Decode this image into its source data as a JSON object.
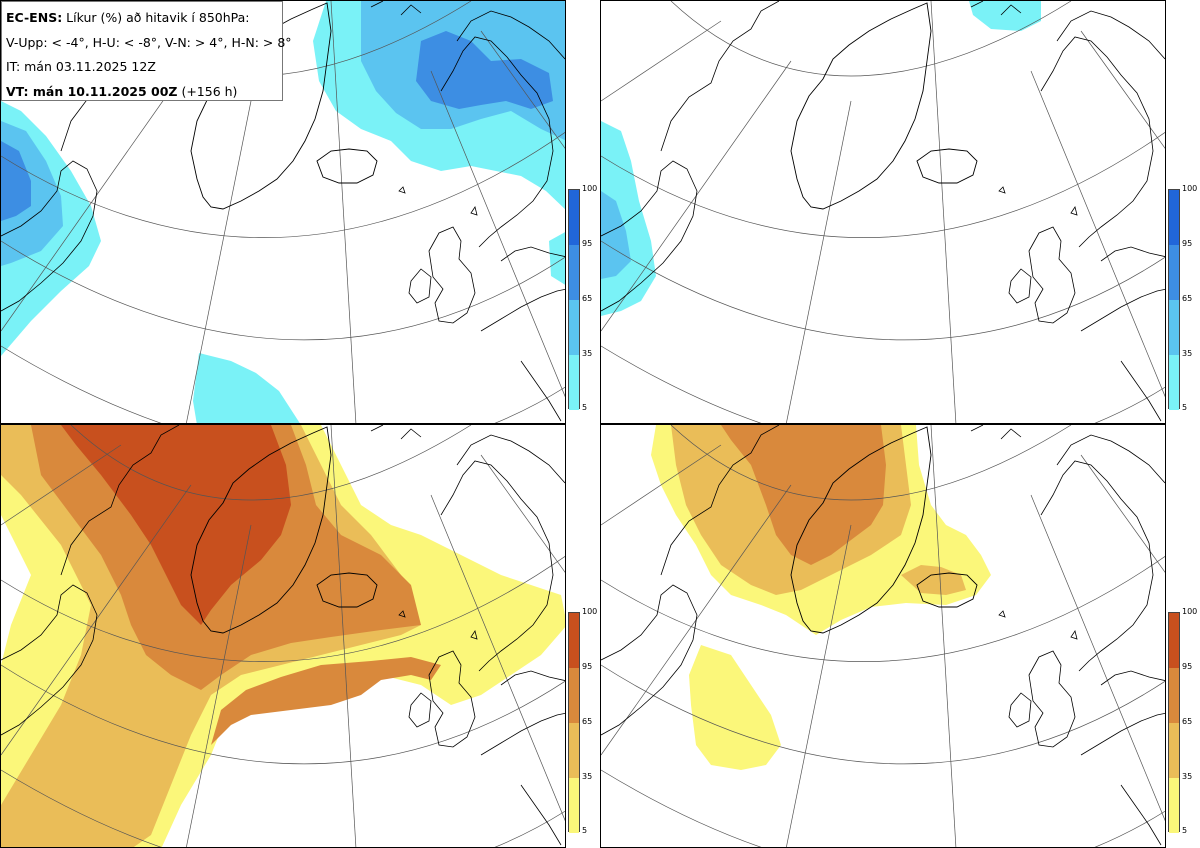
{
  "info": {
    "model": "EC-ENS:",
    "title_rest": " Líkur (%) að hitavik í 850hPa:",
    "thresholds": "V-Upp: < -4°, H-U: < -8°, V-N: > 4°, H-N: > 8°",
    "init_time": "IT: mán 03.11.2025 12Z",
    "valid_prefix": "VT: mán 10.11.2025 00Z",
    "valid_suffix": " (+156 h)"
  },
  "legend_cold": {
    "ticks": [
      "100",
      "95",
      "65",
      "35",
      "5"
    ],
    "colors": [
      "#2166d9",
      "#3d8ee3",
      "#5bc4f0",
      "#7af2f7"
    ]
  },
  "legend_warm": {
    "ticks": [
      "100",
      "95",
      "65",
      "35",
      "5"
    ],
    "colors": [
      "#c8501e",
      "#d9893c",
      "#eabd58",
      "#fbf77a"
    ]
  },
  "panels": [
    {
      "name": "V-Upp",
      "color_scale": "cold"
    },
    {
      "name": "H-U",
      "color_scale": "cold"
    },
    {
      "name": "V-N",
      "color_scale": "warm"
    },
    {
      "name": "H-N",
      "color_scale": "warm"
    }
  ]
}
